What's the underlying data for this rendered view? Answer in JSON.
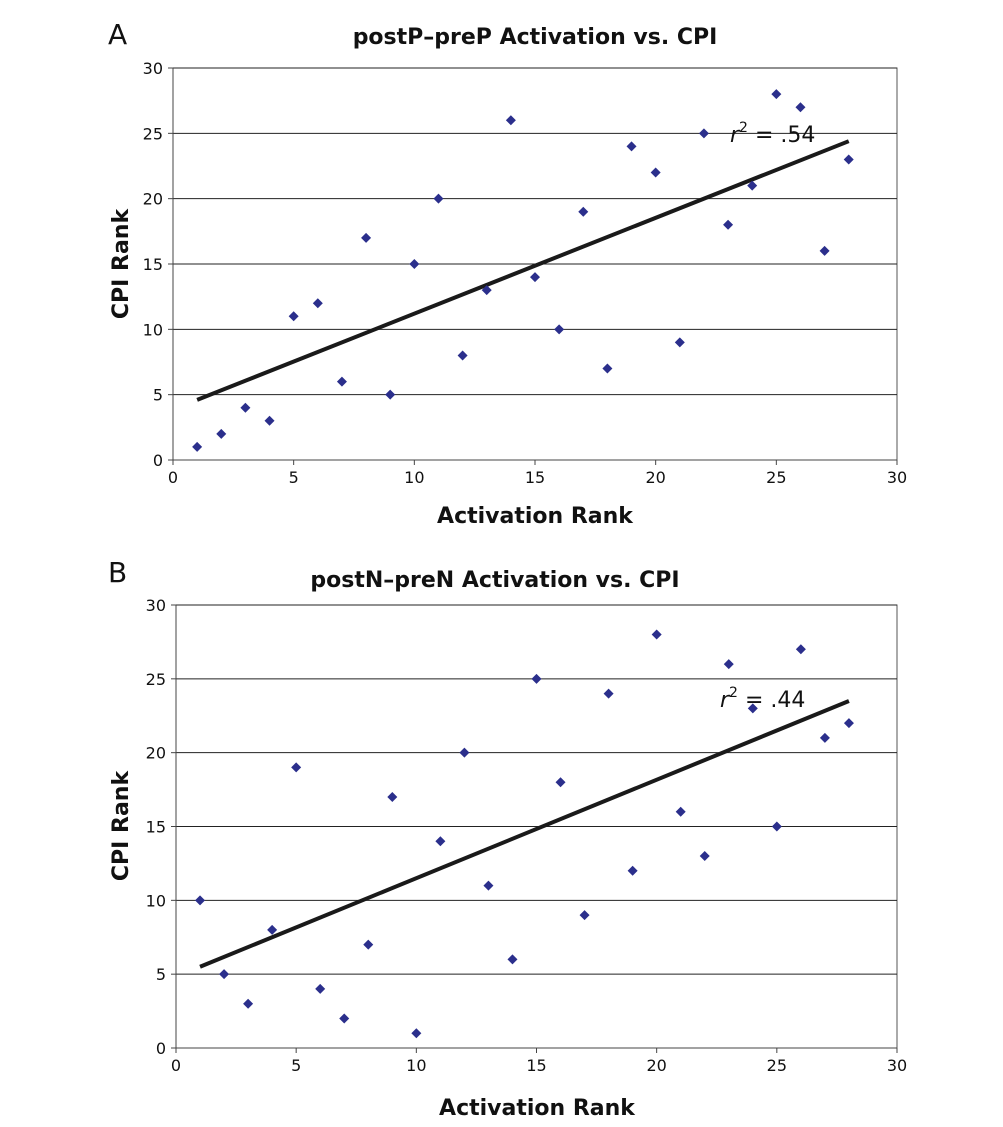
{
  "chart_data": [
    {
      "type": "scatter",
      "panel": "A",
      "title": "postP–preP Activation vs. CPI",
      "xlabel": "Activation Rank",
      "ylabel": "CPI Rank",
      "xlim": [
        0,
        30
      ],
      "ylim": [
        0,
        30
      ],
      "xticks": [
        0,
        5,
        10,
        15,
        20,
        25,
        30
      ],
      "yticks": [
        0,
        5,
        10,
        15,
        20,
        25,
        30
      ],
      "grid": "horizontal",
      "annotation": {
        "prefix": "r",
        "sup": "2",
        "suffix": " = .54"
      },
      "series": [
        {
          "marker_color": "#2b2f8c",
          "points": [
            [
              1,
              1
            ],
            [
              2,
              2
            ],
            [
              3,
              4
            ],
            [
              4,
              3
            ],
            [
              5,
              11
            ],
            [
              6,
              12
            ],
            [
              7,
              6
            ],
            [
              8,
              17
            ],
            [
              9,
              5
            ],
            [
              10,
              15
            ],
            [
              11,
              20
            ],
            [
              12,
              8
            ],
            [
              13,
              13
            ],
            [
              14,
              26
            ],
            [
              15,
              14
            ],
            [
              16,
              10
            ],
            [
              17,
              19
            ],
            [
              18,
              7
            ],
            [
              19,
              24
            ],
            [
              20,
              22
            ],
            [
              21,
              9
            ],
            [
              22,
              25
            ],
            [
              23,
              18
            ],
            [
              24,
              21
            ],
            [
              25,
              28
            ],
            [
              26,
              27
            ],
            [
              27,
              16
            ],
            [
              28,
              23
            ]
          ]
        }
      ],
      "trendline": {
        "x": [
          1,
          28
        ],
        "y": [
          4.6,
          24.4
        ]
      }
    },
    {
      "type": "scatter",
      "panel": "B",
      "title": "postN–preN Activation vs. CPI",
      "xlabel": "Activation Rank",
      "ylabel": "CPI Rank",
      "xlim": [
        0,
        30
      ],
      "ylim": [
        0,
        30
      ],
      "xticks": [
        0,
        5,
        10,
        15,
        20,
        25,
        30
      ],
      "yticks": [
        0,
        5,
        10,
        15,
        20,
        25,
        30
      ],
      "grid": "horizontal",
      "annotation": {
        "prefix": "r",
        "sup": "2",
        "suffix": " = .44"
      },
      "series": [
        {
          "marker_color": "#2b2f8c",
          "points": [
            [
              1,
              10
            ],
            [
              2,
              5
            ],
            [
              3,
              3
            ],
            [
              4,
              8
            ],
            [
              5,
              19
            ],
            [
              6,
              4
            ],
            [
              7,
              2
            ],
            [
              8,
              7
            ],
            [
              9,
              17
            ],
            [
              10,
              1
            ],
            [
              11,
              14
            ],
            [
              12,
              20
            ],
            [
              13,
              11
            ],
            [
              14,
              6
            ],
            [
              15,
              25
            ],
            [
              16,
              18
            ],
            [
              17,
              9
            ],
            [
              18,
              24
            ],
            [
              19,
              12
            ],
            [
              20,
              28
            ],
            [
              21,
              16
            ],
            [
              22,
              13
            ],
            [
              23,
              26
            ],
            [
              24,
              23
            ],
            [
              25,
              15
            ],
            [
              26,
              27
            ],
            [
              27,
              21
            ],
            [
              28,
              22
            ]
          ]
        }
      ],
      "trendline": {
        "x": [
          1,
          28
        ],
        "y": [
          5.5,
          23.5
        ]
      }
    }
  ]
}
